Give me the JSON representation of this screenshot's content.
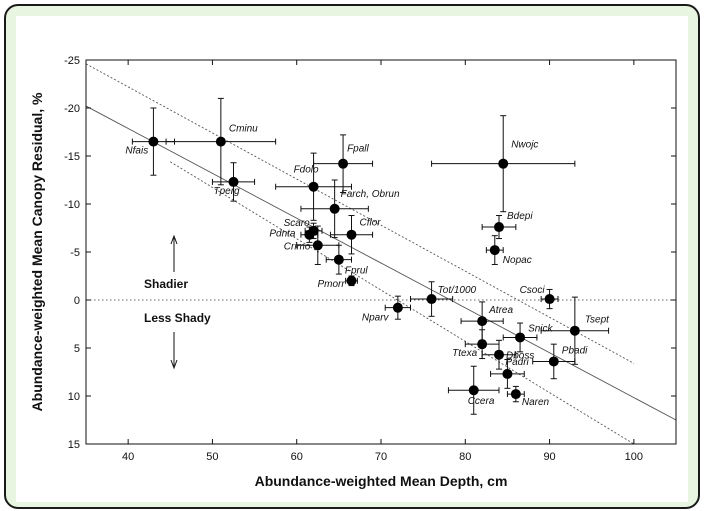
{
  "chart_data": {
    "type": "scatter",
    "xlabel": "Abundance-weighted Mean Depth, cm",
    "ylabel": "Abundance-weighted Mean Canopy Residual, %",
    "xlim": [
      35,
      105
    ],
    "ylim": [
      -25,
      15
    ],
    "y_inverted": true,
    "x_ticks": [
      "40",
      "50",
      "60",
      "70",
      "80",
      "90",
      "100"
    ],
    "y_ticks": [
      "-25",
      "-20",
      "-15",
      "-10",
      "-5",
      "0",
      "5",
      "10",
      "15"
    ],
    "grid": false,
    "annotations": {
      "upper": "Shadier",
      "lower": "Less Shady"
    },
    "regression_line": {
      "x": [
        35,
        105
      ],
      "y": [
        -20.2,
        12.5
      ]
    },
    "confidence_band_upper": {
      "x": [
        35,
        100
      ],
      "y": [
        -24.6,
        6.6
      ]
    },
    "confidence_band_lower": {
      "x": [
        45,
        100
      ],
      "y": [
        -14.4,
        15.0
      ]
    },
    "zero_line": 0,
    "points": [
      {
        "label": "Nfais",
        "x": 43,
        "y": -16.5,
        "xerr": 2.5,
        "yerr": 3.5
      },
      {
        "label": "Cminu",
        "x": 51,
        "y": -16.5,
        "xerr": 6.5,
        "yerr": 4.5
      },
      {
        "label": "Tperg",
        "x": 52.5,
        "y": -12.3,
        "xerr": 2.5,
        "yerr": 2
      },
      {
        "label": "Fdolo",
        "x": 62,
        "y": -11.8,
        "xerr": 4.5,
        "yerr": 3.5
      },
      {
        "label": "Fpall",
        "x": 65.5,
        "y": -14.2,
        "xerr": 3.5,
        "yerr": 3
      },
      {
        "label": "Farch, Obrun",
        "x": 64.5,
        "y": -9.5,
        "xerr": 4,
        "yerr": 3
      },
      {
        "label": "Scaro",
        "x": 62,
        "y": -7.2,
        "xerr": 1,
        "yerr": 0.8
      },
      {
        "label": "Pdnta",
        "x": 61.5,
        "y": -6.8,
        "xerr": 1,
        "yerr": 0.8
      },
      {
        "label": "Cflor",
        "x": 66.5,
        "y": -6.8,
        "xerr": 2.5,
        "yerr": 2
      },
      {
        "label": "Crimo",
        "x": 62.5,
        "y": -5.7,
        "xerr": 2.5,
        "yerr": 2
      },
      {
        "label": "Fprul",
        "x": 65,
        "y": -4.2,
        "xerr": 1.5,
        "yerr": 1.5
      },
      {
        "label": "Pmorr",
        "x": 66.5,
        "y": -2.0,
        "xerr": 0.7,
        "yerr": 0.5
      },
      {
        "label": "Nparv",
        "x": 72,
        "y": 0.8,
        "xerr": 1.5,
        "yerr": 1.2
      },
      {
        "label": "Tot/1000",
        "x": 76,
        "y": -0.1,
        "xerr": 2.5,
        "yerr": 1.8
      },
      {
        "label": "Atrea",
        "x": 82,
        "y": 2.2,
        "xerr": 2.5,
        "yerr": 2
      },
      {
        "label": "Ttexa",
        "x": 82,
        "y": 4.6,
        "xerr": 2,
        "yerr": 1.5
      },
      {
        "label": "Snick",
        "x": 86.5,
        "y": 3.9,
        "xerr": 2,
        "yerr": 1.5
      },
      {
        "label": "Dboss",
        "x": 84,
        "y": 5.7,
        "xerr": 2,
        "yerr": 1.5
      },
      {
        "label": "Padri",
        "x": 85,
        "y": 7.7,
        "xerr": 2,
        "yerr": 1.5
      },
      {
        "label": "Pbadi",
        "x": 90.5,
        "y": 6.4,
        "xerr": 2.5,
        "yerr": 1.8
      },
      {
        "label": "Tsept",
        "x": 93,
        "y": 3.2,
        "xerr": 4,
        "yerr": 3.5
      },
      {
        "label": "Ccera",
        "x": 81,
        "y": 9.4,
        "xerr": 3,
        "yerr": 2.5
      },
      {
        "label": "Naren",
        "x": 86,
        "y": 9.8,
        "xerr": 1,
        "yerr": 0.8
      },
      {
        "label": "Csoci",
        "x": 90,
        "y": -0.1,
        "xerr": 1,
        "yerr": 1
      },
      {
        "label": "Nwojc",
        "x": 84.5,
        "y": -14.2,
        "xerr": 8.5,
        "yerr": 5
      },
      {
        "label": "Bdepi",
        "x": 84,
        "y": -7.6,
        "xerr": 2,
        "yerr": 1.2
      },
      {
        "label": "Nopac",
        "x": 83.5,
        "y": -5.2,
        "xerr": 1,
        "yerr": 1.5
      }
    ]
  }
}
